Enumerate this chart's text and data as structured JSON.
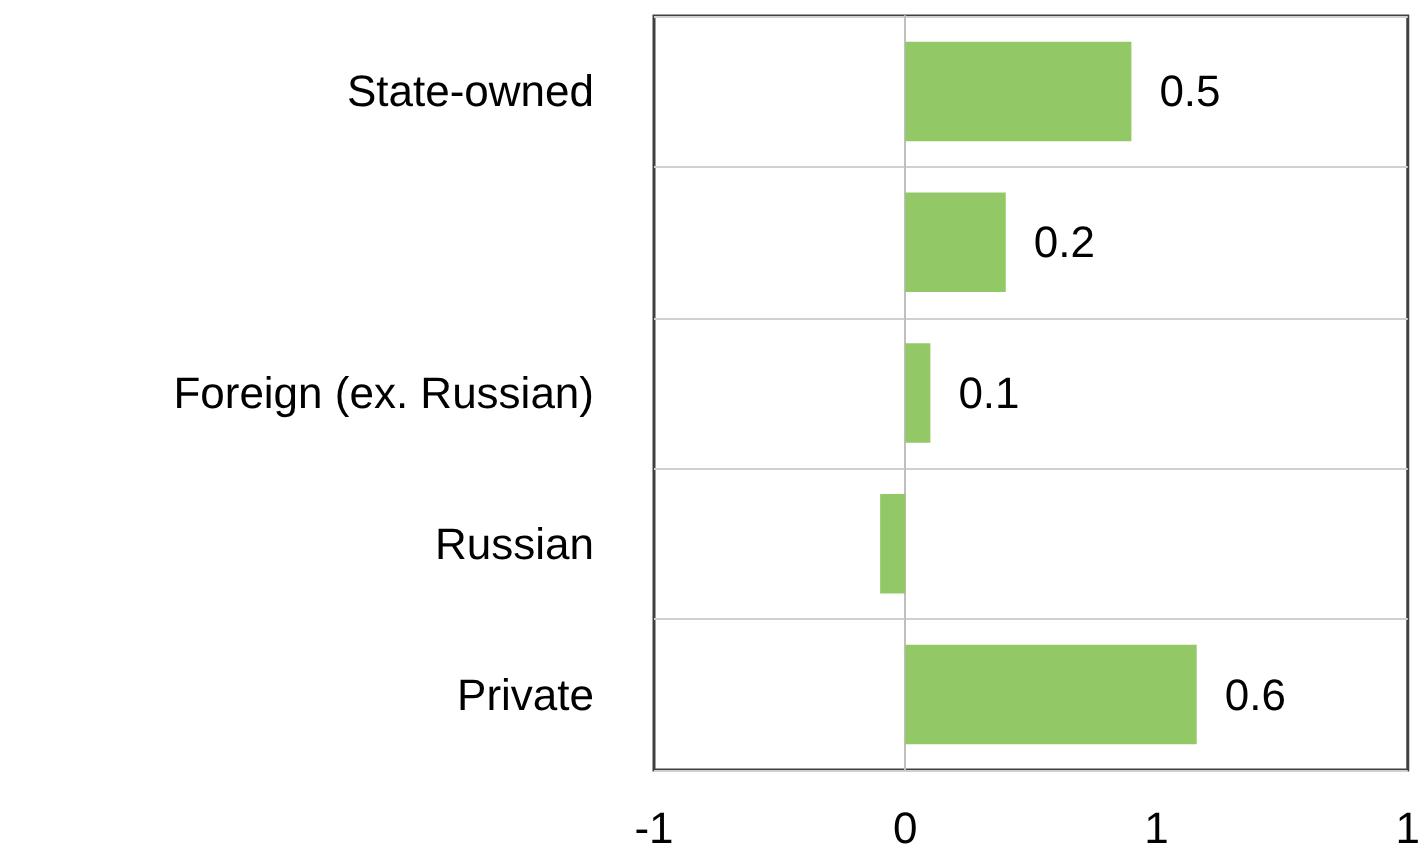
{
  "chart_data": {
    "type": "bar",
    "orientation": "horizontal",
    "categories": [
      "State-owned",
      null,
      "Foreign (ex. Russian)",
      "Russian",
      "Private"
    ],
    "values": [
      0.45,
      0.2,
      0.05,
      -0.05,
      0.58
    ],
    "color": "#92c966",
    "value_labels": [
      "0.5",
      "0.2",
      "0.1",
      null,
      "0.6"
    ],
    "xlim": [
      -0.5,
      1
    ],
    "xticks": [
      {
        "value": -0.5,
        "label": "-1"
      },
      {
        "value": 0,
        "label": "0"
      },
      {
        "value": 0.5,
        "label": "1"
      },
      {
        "value": 1,
        "label": "1"
      }
    ],
    "grid": "y"
  }
}
